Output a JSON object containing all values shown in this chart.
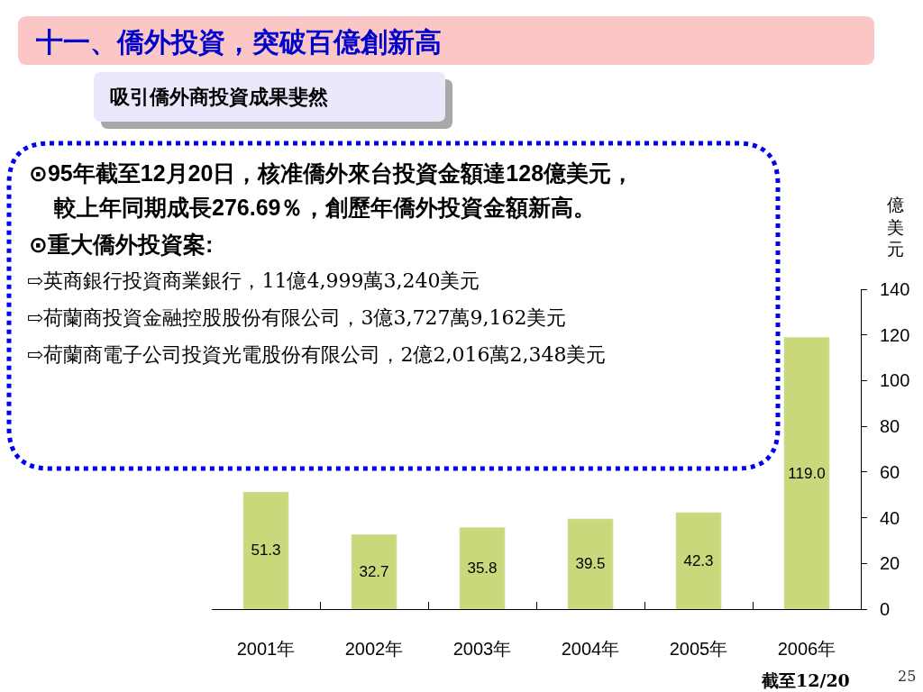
{
  "chart_data": {
    "type": "bar",
    "title": "十一、僑外投資，突破百億創新高",
    "subtitle": "吸引僑外商投資成果斐然",
    "ylabel": "億美元",
    "categories": [
      "2001年",
      "2002年",
      "2003年",
      "2004年",
      "2005年",
      "2006年"
    ],
    "values": [
      51.3,
      32.7,
      35.8,
      39.5,
      42.3,
      119.0
    ],
    "value_labels": [
      "51.3",
      "32.7",
      "35.8",
      "39.5",
      "42.3",
      "119.0"
    ],
    "color": "#c9d87a",
    "ylim": [
      0,
      140
    ],
    "yticks": [
      0,
      20,
      40,
      60,
      80,
      100,
      120,
      140
    ],
    "annotations": [
      "⊙95年截至12月20日，核准僑外來台投資金額達128億美元，",
      "較上年同期成長276.69％，創歷年僑外投資金額新高。",
      "⊙重大僑外投資案:",
      "⇨英商銀行投資商業銀行，11億4,999萬3,240美元",
      "⇨荷蘭商投資金融控股股份有限公司，3億3,727萬9,162美元",
      "⇨荷蘭商電子公司投資光電股份有限公司，2億2,016萬2,348美元",
      "截至12/20",
      "25"
    ]
  }
}
